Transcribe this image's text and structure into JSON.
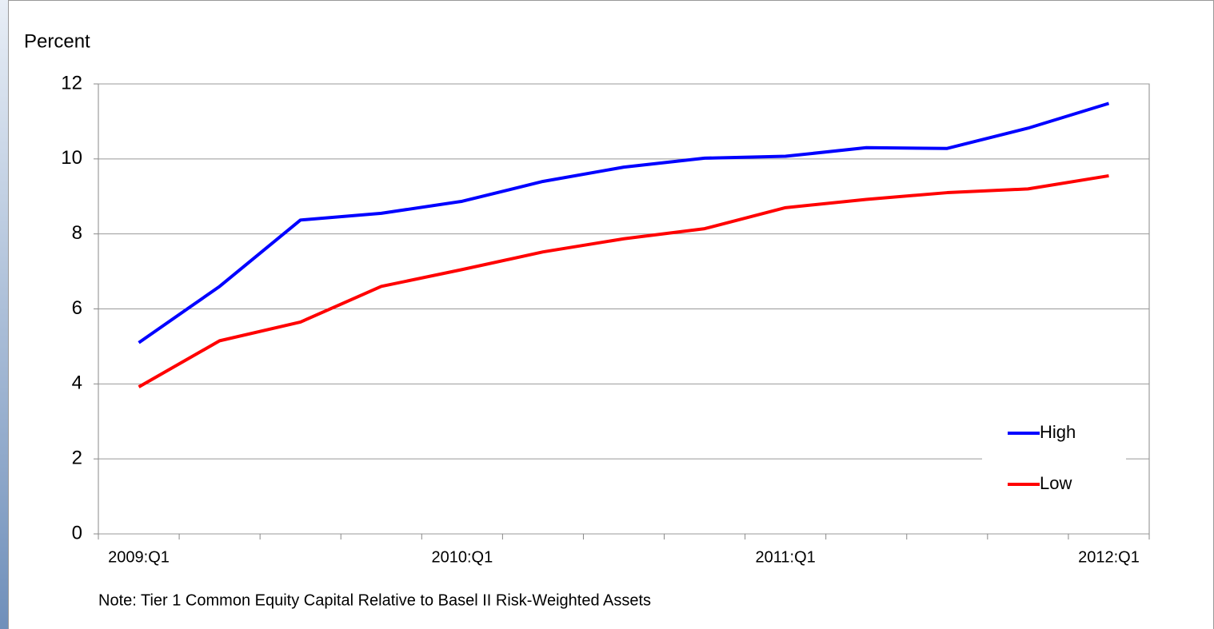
{
  "chart_data": {
    "type": "line",
    "y_label": "Percent",
    "categories": [
      "2009:Q1",
      null,
      null,
      null,
      "2010:Q1",
      null,
      null,
      null,
      "2011:Q1",
      null,
      null,
      null,
      "2012:Q1"
    ],
    "series": [
      {
        "name": "High",
        "color": "#0000ff",
        "values": [
          5.1,
          6.6,
          8.37,
          8.55,
          8.87,
          9.4,
          9.78,
          10.02,
          10.07,
          10.3,
          10.28,
          10.82,
          11.48
        ]
      },
      {
        "name": "Low",
        "color": "#ff0000",
        "values": [
          3.92,
          5.15,
          5.65,
          6.6,
          7.05,
          7.52,
          7.87,
          8.14,
          8.7,
          8.92,
          9.1,
          9.2,
          9.55
        ]
      }
    ],
    "ylim": [
      0,
      12
    ],
    "yticks": [
      0,
      2,
      4,
      6,
      8,
      10,
      12
    ],
    "grid": true,
    "legend": "lower right",
    "note": "Note:  Tier 1 Common Equity Capital Relative to Basel II Risk-Weighted Assets"
  }
}
